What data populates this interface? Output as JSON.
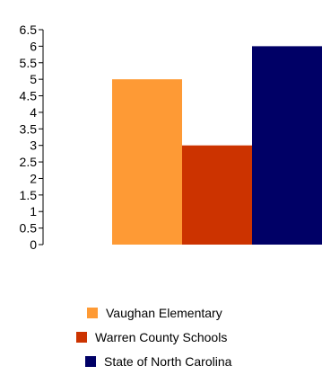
{
  "chart_data": {
    "type": "bar",
    "categories": [
      "Vaughan Elementary",
      "Warren County Schools",
      "State of North Carolina"
    ],
    "values": [
      5,
      3,
      6
    ],
    "colors": [
      "#fe9a35",
      "#cc3300",
      "#000066"
    ],
    "ylim": [
      0,
      6.5
    ],
    "yticks": [
      0,
      0.5,
      1,
      1.5,
      2,
      2.5,
      3,
      3.5,
      4,
      4.5,
      5,
      5.5,
      6,
      6.5
    ],
    "grid": false,
    "legend_placement": "bottom"
  },
  "legend": {
    "items": [
      {
        "label": "Vaughan Elementary",
        "color": "#fe9a35"
      },
      {
        "label": "Warren County Schools",
        "color": "#cc3300"
      },
      {
        "label": "State of North Carolina",
        "color": "#000066"
      }
    ]
  }
}
